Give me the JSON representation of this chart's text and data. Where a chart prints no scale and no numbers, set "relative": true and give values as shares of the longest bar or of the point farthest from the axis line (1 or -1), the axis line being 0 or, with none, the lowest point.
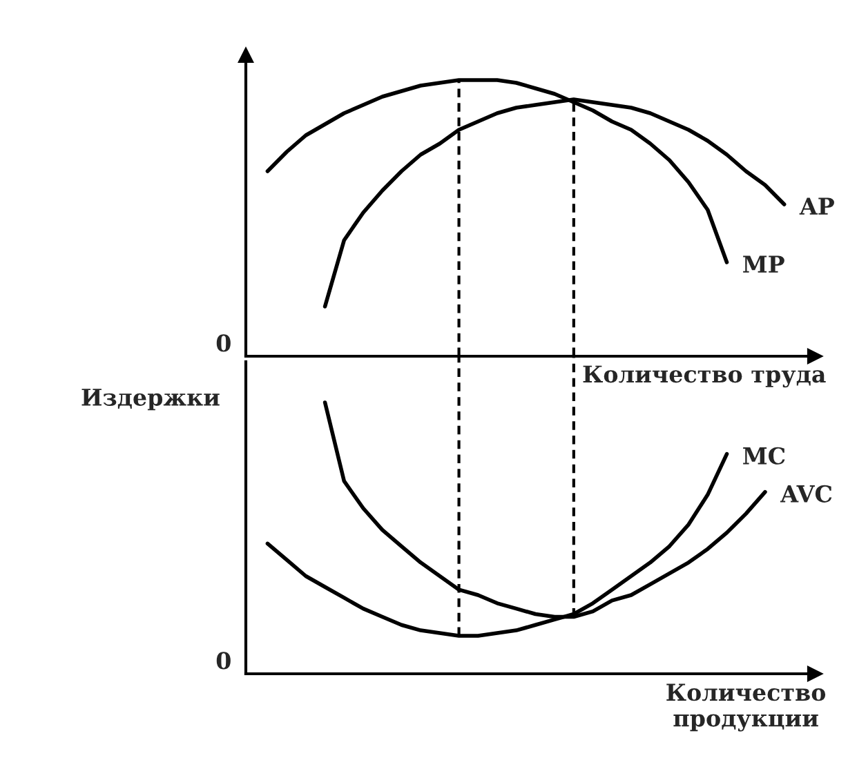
{
  "chart_data": [
    {
      "type": "line",
      "relative": true,
      "line_style": "solid",
      "xlabel": "Количество труда",
      "annotations": [
        "0"
      ],
      "categories": [
        null,
        null,
        null,
        null,
        null,
        null,
        null,
        null,
        null,
        null,
        null,
        null,
        null,
        null,
        null,
        null,
        null,
        null,
        null,
        null,
        null,
        null,
        null,
        null,
        null,
        null,
        null,
        null
      ],
      "series": [
        {
          "name": "MP",
          "color": "#000000",
          "values": [
            0.67,
            0.74,
            0.8,
            0.84,
            0.88,
            0.91,
            0.94,
            0.96,
            0.98,
            0.99,
            1.0,
            1.0,
            1.0,
            0.99,
            0.97,
            0.95,
            0.92,
            0.89,
            0.85,
            0.82,
            0.77,
            0.71,
            0.63,
            0.53,
            0.34,
            null,
            null,
            null
          ]
        },
        {
          "name": "AP",
          "color": "#000000",
          "values": [
            null,
            null,
            null,
            0.18,
            0.42,
            0.52,
            0.6,
            0.67,
            0.73,
            0.77,
            0.82,
            0.85,
            0.88,
            0.9,
            0.91,
            0.92,
            0.93,
            0.92,
            0.91,
            0.9,
            0.88,
            0.85,
            0.82,
            0.78,
            0.73,
            0.67,
            0.62,
            0.55
          ]
        }
      ]
    },
    {
      "type": "line",
      "relative": true,
      "line_style": "solid",
      "xlabel": "Количество\nпродукции",
      "ylabel": "Издержки",
      "annotations": [
        "0"
      ],
      "categories": [
        null,
        null,
        null,
        null,
        null,
        null,
        null,
        null,
        null,
        null,
        null,
        null,
        null,
        null,
        null,
        null,
        null,
        null,
        null,
        null,
        null,
        null,
        null,
        null,
        null,
        null,
        null,
        null
      ],
      "series": [
        {
          "name": "MC",
          "color": "#000000",
          "values": [
            0.48,
            0.42,
            0.36,
            0.32,
            0.28,
            0.24,
            0.21,
            0.18,
            0.16,
            0.15,
            0.14,
            0.14,
            0.15,
            0.16,
            0.18,
            0.2,
            0.22,
            0.26,
            0.31,
            0.36,
            0.41,
            0.47,
            0.55,
            0.66,
            0.81,
            null,
            null,
            null
          ]
        },
        {
          "name": "AVC",
          "color": "#000000",
          "values": [
            null,
            null,
            null,
            1.0,
            0.71,
            0.61,
            0.53,
            0.47,
            0.41,
            0.36,
            0.31,
            0.29,
            0.26,
            0.24,
            0.22,
            0.21,
            0.21,
            0.23,
            0.27,
            0.29,
            0.33,
            0.37,
            0.41,
            0.46,
            0.52,
            0.59,
            0.67,
            null
          ]
        }
      ]
    }
  ]
}
